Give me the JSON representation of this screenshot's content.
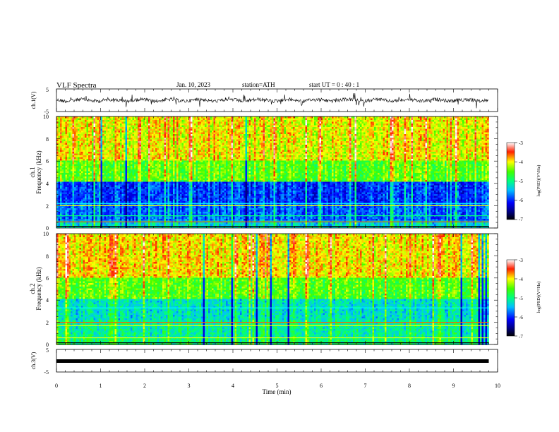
{
  "header": {
    "title": "VLF  Spectra",
    "date": "Jan. 10, 2023",
    "station": "station=ATH",
    "start_ut": "start  UT  =    0 : 40 : 1"
  },
  "chart_data": [
    {
      "type": "line",
      "name": "ch1-waveform",
      "ylabel": "ch.1(V)",
      "ylim": [
        -5,
        5
      ],
      "yticks": [
        "5",
        "-5"
      ],
      "xlim": [
        0,
        10
      ]
    },
    {
      "type": "heatmap",
      "name": "ch1-spectrogram",
      "ylabel_line1": "ch.1",
      "ylabel_line2": "Frequency (kHz)",
      "ylim": [
        0,
        10
      ],
      "yticks": [
        "0",
        "2",
        "4",
        "6",
        "8",
        "10"
      ],
      "xlim": [
        0,
        10
      ],
      "data_x_range": [
        0,
        9.8
      ],
      "colorbar": {
        "label": "log(PSD)(V²/Hz)",
        "range": [
          -7,
          -3
        ],
        "ticks": [
          "-3",
          "-4",
          "-5",
          "-6",
          "-7"
        ]
      }
    },
    {
      "type": "heatmap",
      "name": "ch2-spectrogram",
      "ylabel_line1": "ch.2",
      "ylabel_line2": "Frequency (kHz)",
      "ylim": [
        0,
        10
      ],
      "yticks": [
        "0",
        "2",
        "4",
        "6",
        "8",
        "10"
      ],
      "xlim": [
        0,
        10
      ],
      "data_x_range": [
        0,
        9.8
      ],
      "colorbar": {
        "label": "log(PSD)(V²/Hz)",
        "range": [
          -7,
          -3
        ],
        "ticks": [
          "-3",
          "-4",
          "-5",
          "-6",
          "-7"
        ]
      }
    },
    {
      "type": "line",
      "name": "ch3-waveform",
      "ylabel": "ch.3(V)",
      "ylim": [
        -5,
        5
      ],
      "yticks": [
        "5",
        "-5"
      ],
      "xlim": [
        0,
        10
      ]
    }
  ],
  "x_axis": {
    "label": "Time  (min)",
    "ticks": [
      "0",
      "1",
      "2",
      "3",
      "4",
      "5",
      "6",
      "7",
      "8",
      "9",
      "10"
    ]
  }
}
